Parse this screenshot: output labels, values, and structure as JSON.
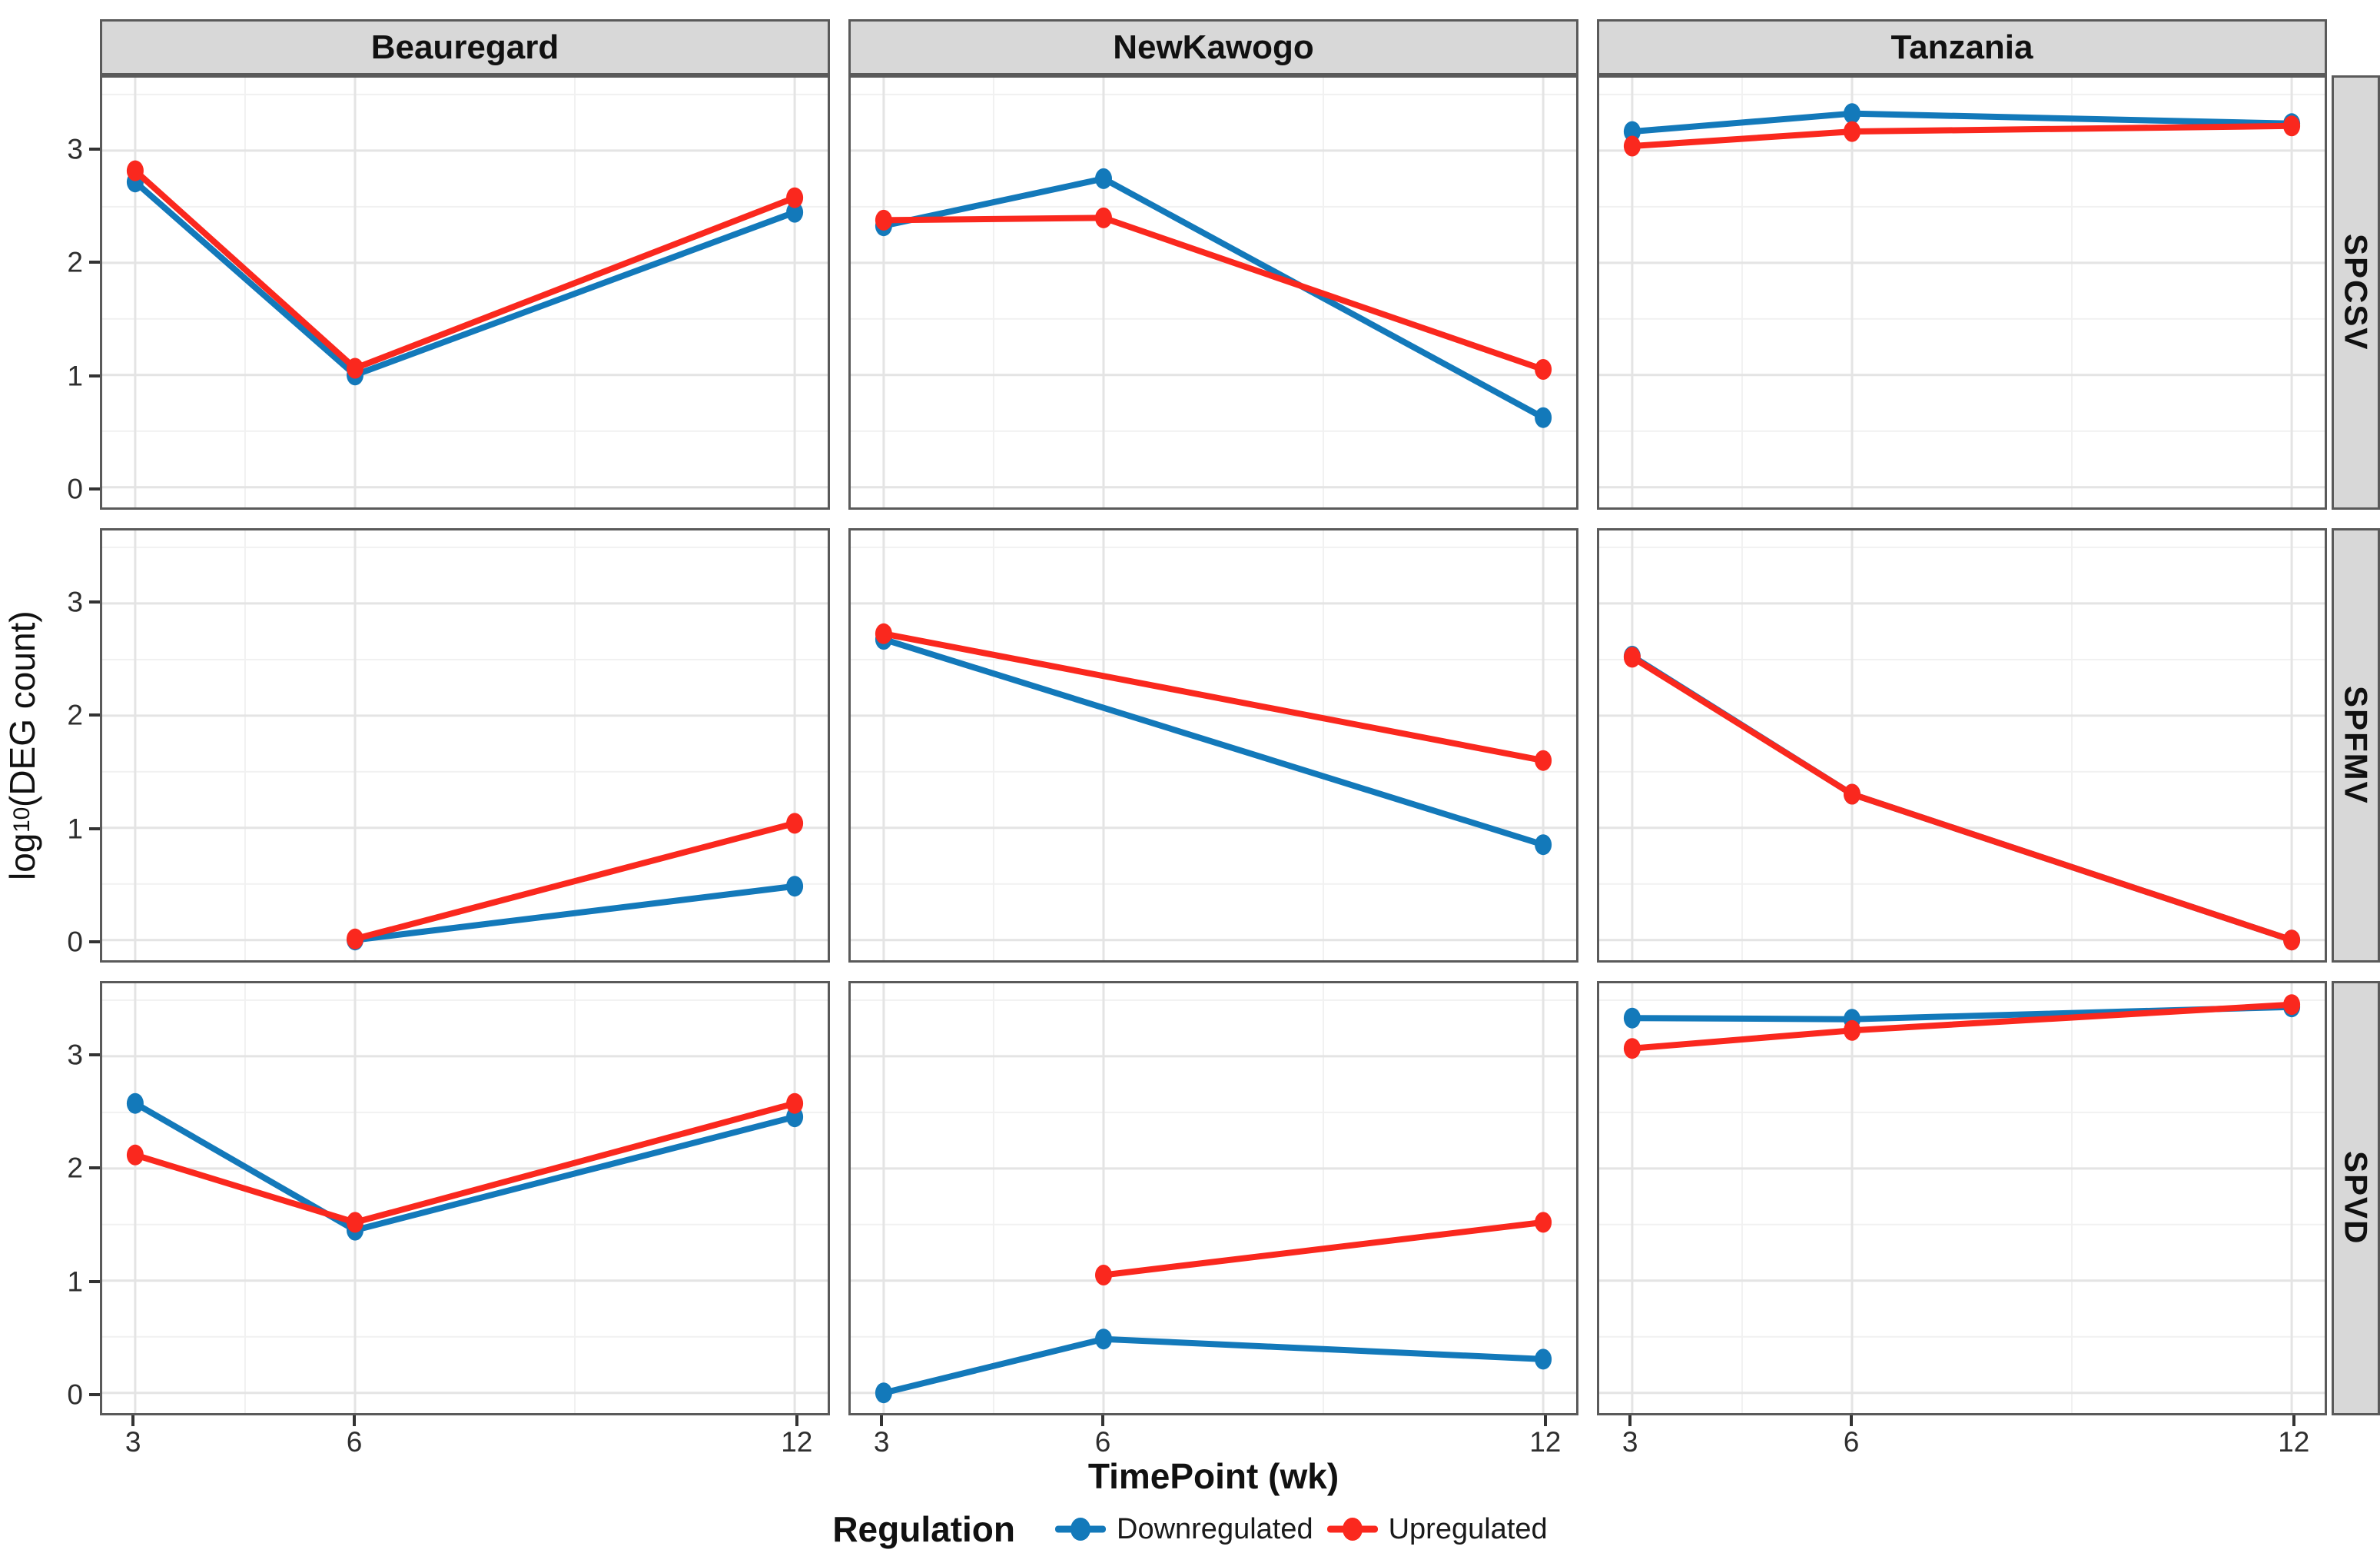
{
  "chart_data": {
    "type": "line",
    "title": "",
    "xlabel": "TimePoint (wk)",
    "ylabel": "log10(DEG count)",
    "ylabel_parts": {
      "pre": "log",
      "sub": "10",
      "post": "(DEG count)"
    },
    "col_facets": [
      "Beauregard",
      "NewKawogo",
      "Tanzania"
    ],
    "row_facets": [
      "SPCSV",
      "SPFMV",
      "SPVD"
    ],
    "x_major": [
      3,
      6,
      12
    ],
    "x_ticks": [
      "3",
      "6",
      "12"
    ],
    "x_minor": [
      4.5,
      9
    ],
    "y_major": [
      0,
      1,
      2,
      3
    ],
    "y_ticks": [
      "0",
      "1",
      "2",
      "3"
    ],
    "y_minor": [
      0.5,
      1.5,
      2.5,
      3.5
    ],
    "xlim": [
      2.55,
      12.45
    ],
    "ylim": [
      -0.18,
      3.65
    ],
    "grid_on": true,
    "legend": {
      "title": "Regulation",
      "position": "bottom",
      "items": [
        {
          "label": "Downregulated",
          "color": "#1379BA"
        },
        {
          "label": "Upregulated",
          "color": "#FA281E"
        }
      ]
    },
    "style": {
      "grid_major_color": "#e4e4e4",
      "grid_minor_color": "#f1f1f1",
      "panel_border_color": "#5a5a5a",
      "strip_bg_color": "#d8d8d8",
      "line_width": 8,
      "point_rx": 11,
      "point_ry": 13.5
    },
    "panels": [
      {
        "row": "SPCSV",
        "col": "Beauregard",
        "series": [
          {
            "name": "Downregulated",
            "points": [
              [
                3,
                2.72
              ],
              [
                6,
                1.0
              ],
              [
                12,
                2.45
              ]
            ]
          },
          {
            "name": "Upregulated",
            "points": [
              [
                3,
                2.82
              ],
              [
                6,
                1.06
              ],
              [
                12,
                2.58
              ]
            ]
          }
        ]
      },
      {
        "row": "SPCSV",
        "col": "NewKawogo",
        "series": [
          {
            "name": "Downregulated",
            "points": [
              [
                3,
                2.33
              ],
              [
                6,
                2.75
              ],
              [
                12,
                0.62
              ]
            ]
          },
          {
            "name": "Upregulated",
            "points": [
              [
                3,
                2.38
              ],
              [
                6,
                2.4
              ],
              [
                12,
                1.05
              ]
            ]
          }
        ]
      },
      {
        "row": "SPCSV",
        "col": "Tanzania",
        "series": [
          {
            "name": "Downregulated",
            "points": [
              [
                3,
                3.17
              ],
              [
                6,
                3.33
              ],
              [
                12,
                3.24
              ]
            ]
          },
          {
            "name": "Upregulated",
            "points": [
              [
                3,
                3.04
              ],
              [
                6,
                3.17
              ],
              [
                12,
                3.22
              ]
            ]
          }
        ]
      },
      {
        "row": "SPFMV",
        "col": "Beauregard",
        "series": [
          {
            "name": "Downregulated",
            "points": [
              [
                6,
                0.0
              ],
              [
                12,
                0.48
              ]
            ]
          },
          {
            "name": "Upregulated",
            "points": [
              [
                6,
                0.01
              ],
              [
                12,
                1.04
              ]
            ]
          }
        ]
      },
      {
        "row": "SPFMV",
        "col": "NewKawogo",
        "series": [
          {
            "name": "Downregulated",
            "points": [
              [
                3,
                2.68
              ],
              [
                12,
                0.85
              ]
            ]
          },
          {
            "name": "Upregulated",
            "points": [
              [
                3,
                2.73
              ],
              [
                12,
                1.6
              ]
            ]
          }
        ]
      },
      {
        "row": "SPFMV",
        "col": "Tanzania",
        "series": [
          {
            "name": "Downregulated",
            "points": [
              [
                3,
                2.53
              ],
              [
                6,
                1.3
              ],
              [
                12,
                0.0
              ]
            ]
          },
          {
            "name": "Upregulated",
            "points": [
              [
                3,
                2.52
              ],
              [
                6,
                1.3
              ],
              [
                12,
                0.0
              ]
            ]
          }
        ]
      },
      {
        "row": "SPVD",
        "col": "Beauregard",
        "series": [
          {
            "name": "Downregulated",
            "points": [
              [
                3,
                2.58
              ],
              [
                6,
                1.45
              ],
              [
                12,
                2.46
              ]
            ]
          },
          {
            "name": "Upregulated",
            "points": [
              [
                3,
                2.12
              ],
              [
                6,
                1.52
              ],
              [
                12,
                2.58
              ]
            ]
          }
        ]
      },
      {
        "row": "SPVD",
        "col": "NewKawogo",
        "series": [
          {
            "name": "Downregulated",
            "points": [
              [
                3,
                0.0
              ],
              [
                6,
                0.48
              ],
              [
                12,
                0.3
              ]
            ]
          },
          {
            "name": "Upregulated",
            "points": [
              [
                6,
                1.05
              ],
              [
                12,
                1.52
              ]
            ]
          }
        ]
      },
      {
        "row": "SPVD",
        "col": "Tanzania",
        "series": [
          {
            "name": "Downregulated",
            "points": [
              [
                3,
                3.34
              ],
              [
                6,
                3.33
              ],
              [
                12,
                3.44
              ]
            ]
          },
          {
            "name": "Upregulated",
            "points": [
              [
                3,
                3.07
              ],
              [
                6,
                3.23
              ],
              [
                12,
                3.46
              ]
            ]
          }
        ]
      }
    ]
  }
}
